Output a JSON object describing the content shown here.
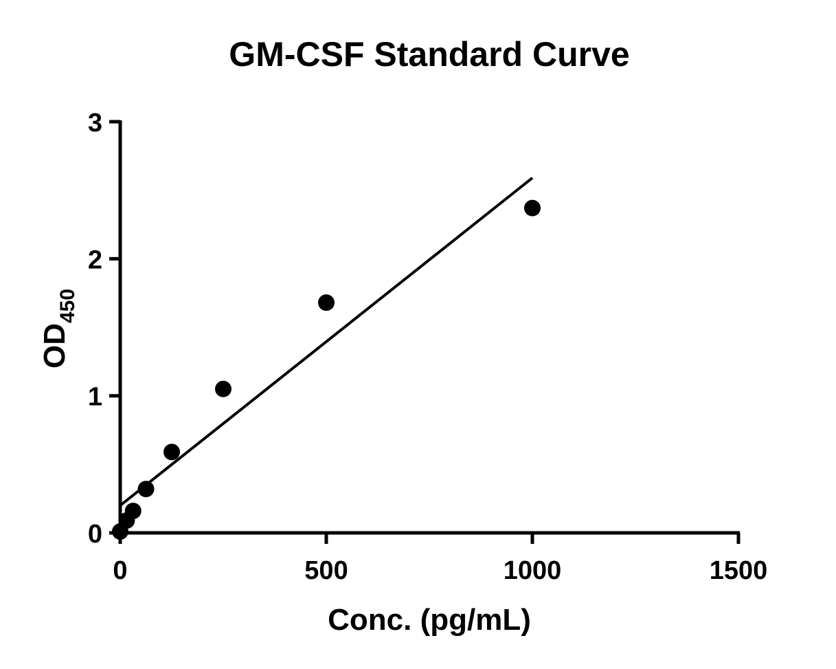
{
  "chart_data": {
    "type": "scatter",
    "title": "GM-CSF Standard Curve",
    "xlabel": "Conc. (pg/mL)",
    "ylabel": {
      "main": "OD",
      "subscript": "450"
    },
    "xlim": [
      0,
      1500
    ],
    "ylim": [
      0,
      3
    ],
    "x_ticks": [
      0,
      500,
      1000,
      1500
    ],
    "y_ticks": [
      0,
      1,
      2,
      3
    ],
    "grid": false,
    "legend": "none",
    "points": [
      {
        "x": 0,
        "y": 0.01
      },
      {
        "x": 15.6,
        "y": 0.09
      },
      {
        "x": 31.25,
        "y": 0.16
      },
      {
        "x": 62.5,
        "y": 0.32
      },
      {
        "x": 125,
        "y": 0.59
      },
      {
        "x": 250,
        "y": 1.05
      },
      {
        "x": 500,
        "y": 1.68
      },
      {
        "x": 1000,
        "y": 2.37
      }
    ],
    "fit_line": {
      "type": "linear",
      "x_start": 0,
      "y_start": 0.2,
      "x_end": 1000,
      "y_end": 2.59
    },
    "colors": {
      "marker": "#000000",
      "line": "#000000",
      "axis": "#000000",
      "background": "#ffffff"
    }
  }
}
